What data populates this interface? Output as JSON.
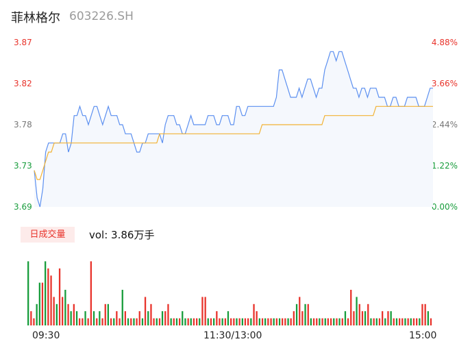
{
  "header": {
    "name": "菲林格尔",
    "code": "603226.SH"
  },
  "chart_data": [
    {
      "type": "line",
      "y_left_ticks": [
        "3.87",
        "3.82",
        "3.78",
        "3.73",
        "3.69"
      ],
      "y_right_ticks": [
        "4.88%",
        "3.66%",
        "2.44%",
        "1.22%",
        "0.00%"
      ],
      "ylim": [
        3.69,
        3.87
      ],
      "colors": {
        "price": "#5b8ff0",
        "avg": "#f2b233",
        "fill": "#f5f8fd"
      },
      "series": [
        {
          "values": [
            3.73,
            3.7,
            3.69,
            3.71,
            3.75,
            3.76,
            3.76,
            3.76,
            3.76,
            3.76,
            3.77,
            3.77,
            3.75,
            3.76,
            3.79,
            3.79,
            3.8,
            3.79,
            3.79,
            3.78,
            3.79,
            3.8,
            3.8,
            3.79,
            3.78,
            3.79,
            3.8,
            3.79,
            3.79,
            3.79,
            3.78,
            3.78,
            3.77,
            3.77,
            3.77,
            3.76,
            3.75,
            3.75,
            3.76,
            3.76,
            3.77,
            3.77,
            3.77,
            3.77,
            3.77,
            3.76,
            3.78,
            3.79,
            3.79,
            3.79,
            3.78,
            3.78,
            3.77,
            3.77,
            3.78,
            3.79,
            3.78,
            3.78,
            3.78,
            3.78,
            3.78,
            3.79,
            3.79,
            3.79,
            3.78,
            3.78,
            3.79,
            3.79,
            3.79,
            3.78,
            3.78,
            3.8,
            3.8,
            3.79,
            3.79,
            3.8,
            3.8,
            3.8,
            3.8,
            3.8,
            3.8,
            3.8,
            3.8,
            3.8,
            3.8,
            3.81,
            3.84,
            3.84,
            3.83,
            3.82,
            3.81,
            3.81,
            3.81,
            3.82,
            3.81,
            3.82,
            3.83,
            3.83,
            3.82,
            3.81,
            3.82,
            3.82,
            3.84,
            3.85,
            3.86,
            3.86,
            3.85,
            3.86,
            3.86,
            3.85,
            3.84,
            3.83,
            3.82,
            3.82,
            3.81,
            3.82,
            3.82,
            3.81,
            3.82,
            3.82,
            3.82,
            3.81,
            3.81,
            3.81,
            3.8,
            3.8,
            3.81,
            3.81,
            3.8,
            3.8,
            3.8,
            3.81,
            3.81,
            3.81,
            3.81,
            3.8,
            3.8,
            3.8,
            3.81,
            3.82,
            3.82
          ]
        },
        {
          "values": [
            3.73,
            3.72,
            3.72,
            3.73,
            3.74,
            3.75,
            3.75,
            3.76,
            3.76,
            3.76,
            3.76,
            3.76,
            3.76,
            3.76,
            3.76,
            3.76,
            3.76,
            3.76,
            3.76,
            3.76,
            3.76,
            3.76,
            3.76,
            3.76,
            3.76,
            3.76,
            3.76,
            3.76,
            3.76,
            3.76,
            3.76,
            3.76,
            3.76,
            3.76,
            3.76,
            3.76,
            3.76,
            3.76,
            3.76,
            3.76,
            3.76,
            3.76,
            3.76,
            3.76,
            3.77,
            3.77,
            3.77,
            3.77,
            3.77,
            3.77,
            3.77,
            3.77,
            3.77,
            3.77,
            3.77,
            3.77,
            3.77,
            3.77,
            3.77,
            3.77,
            3.77,
            3.77,
            3.77,
            3.77,
            3.77,
            3.77,
            3.77,
            3.77,
            3.77,
            3.77,
            3.77,
            3.77,
            3.77,
            3.77,
            3.77,
            3.77,
            3.77,
            3.77,
            3.77,
            3.77,
            3.78,
            3.78,
            3.78,
            3.78,
            3.78,
            3.78,
            3.78,
            3.78,
            3.78,
            3.78,
            3.78,
            3.78,
            3.78,
            3.78,
            3.78,
            3.78,
            3.78,
            3.78,
            3.78,
            3.78,
            3.78,
            3.78,
            3.79,
            3.79,
            3.79,
            3.79,
            3.79,
            3.79,
            3.79,
            3.79,
            3.79,
            3.79,
            3.79,
            3.79,
            3.79,
            3.79,
            3.79,
            3.79,
            3.79,
            3.79,
            3.8,
            3.8,
            3.8,
            3.8,
            3.8,
            3.8,
            3.8,
            3.8,
            3.8,
            3.8,
            3.8,
            3.8,
            3.8,
            3.8,
            3.8,
            3.8,
            3.8,
            3.8,
            3.8,
            3.8,
            3.8
          ]
        }
      ]
    },
    {
      "type": "bar",
      "label": "日成交量",
      "vol_text": "vol: 3.86万手",
      "x_ticks": [
        "09:30",
        "11:30/13:00",
        "15:00"
      ],
      "colors": {
        "up": "#e8332b",
        "down": "#179c3b"
      },
      "values": [
        9,
        2,
        1,
        3,
        6,
        6,
        9,
        8,
        7,
        4,
        3,
        8,
        4,
        5,
        3,
        2,
        3,
        2,
        1,
        1,
        2,
        1,
        9,
        2,
        1,
        2,
        1,
        3,
        3,
        1,
        1,
        2,
        1,
        5,
        2,
        1,
        1,
        1,
        1,
        2,
        1,
        4,
        2,
        3,
        1,
        1,
        1,
        2,
        2,
        3,
        1,
        1,
        1,
        1,
        2,
        1,
        1,
        1,
        1,
        1,
        1,
        4,
        4,
        1,
        1,
        1,
        2,
        1,
        1,
        1,
        2,
        1,
        1,
        1,
        1,
        1,
        1,
        1,
        1,
        3,
        2,
        1,
        1,
        1,
        1,
        1,
        1,
        1,
        1,
        1,
        1,
        1,
        1,
        2,
        3,
        4,
        2,
        3,
        3,
        1,
        1,
        1,
        1,
        1,
        1,
        1,
        1,
        1,
        1,
        1,
        1,
        2,
        1,
        5,
        2,
        4,
        3,
        2,
        2,
        3,
        1,
        1,
        1,
        1,
        2,
        1,
        2,
        2,
        1,
        1,
        1,
        1,
        1,
        1,
        1,
        1,
        1,
        1,
        3,
        3,
        2,
        1
      ],
      "directions": [
        0,
        1,
        1,
        0,
        0,
        1,
        0,
        1,
        1,
        1,
        0,
        1,
        1,
        0,
        1,
        0,
        1,
        0,
        1,
        1,
        0,
        1,
        1,
        0,
        1,
        0,
        1,
        1,
        0,
        1,
        0,
        1,
        1,
        0,
        1,
        0,
        1,
        0,
        1,
        1,
        0,
        1,
        0,
        1,
        1,
        0,
        1,
        0,
        1,
        1,
        0,
        1,
        0,
        1,
        0,
        0,
        1,
        0,
        1,
        1,
        0,
        1,
        1,
        0,
        1,
        0,
        1,
        1,
        0,
        1,
        0,
        1,
        1,
        0,
        1,
        0,
        1,
        1,
        0,
        1,
        1,
        0,
        1,
        0,
        1,
        1,
        0,
        1,
        0,
        1,
        1,
        0,
        1,
        1,
        0,
        1,
        1,
        0,
        1,
        0,
        1,
        1,
        0,
        1,
        0,
        1,
        1,
        0,
        1,
        0,
        1,
        0,
        1,
        1,
        1,
        0,
        1,
        1,
        0,
        1,
        0,
        1,
        0,
        1,
        1,
        0,
        1,
        0,
        1,
        0,
        1,
        1,
        0,
        1,
        0,
        1,
        1,
        0,
        1,
        1,
        0,
        1
      ]
    }
  ]
}
